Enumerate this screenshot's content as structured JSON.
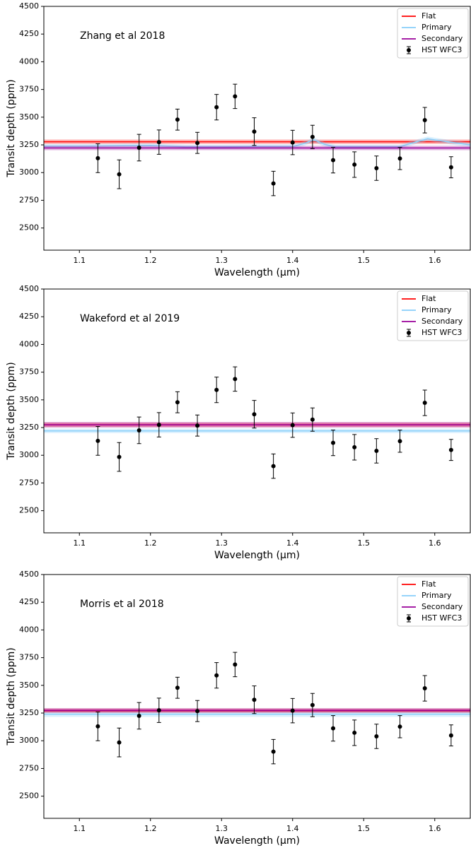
{
  "chart_data": [
    {
      "type": "scatter",
      "annotation": "Zhang et al 2018",
      "x_label": "Wavelength (μm)",
      "y_label": "Transit depth (ppm)",
      "xlim": [
        1.05,
        1.65
      ],
      "ylim": [
        2300,
        4500
      ],
      "xticks": [
        1.1,
        1.2,
        1.3,
        1.4,
        1.5,
        1.6
      ],
      "yticks": [
        2500,
        2750,
        3000,
        3250,
        3500,
        3750,
        4000,
        4250,
        4500
      ],
      "legend": "upper right",
      "series": [
        {
          "name": "Flat",
          "type": "line",
          "color": "#ff0000",
          "band": 20,
          "x": [
            1.05,
            1.65
          ],
          "values": [
            3278,
            3278
          ]
        },
        {
          "name": "Primary",
          "type": "line",
          "color": "#87cefa",
          "band": 20,
          "x": [
            1.05,
            1.1,
            1.2,
            1.25,
            1.3,
            1.35,
            1.4,
            1.415,
            1.43,
            1.445,
            1.46,
            1.5,
            1.55,
            1.57,
            1.59,
            1.61,
            1.65
          ],
          "values": [
            3238,
            3238,
            3245,
            3232,
            3232,
            3235,
            3235,
            3260,
            3295,
            3255,
            3232,
            3232,
            3232,
            3270,
            3305,
            3285,
            3250
          ]
        },
        {
          "name": "Secondary",
          "type": "line",
          "color": "#990099",
          "band": 20,
          "x": [
            1.05,
            1.65
          ],
          "values": [
            3222,
            3222
          ]
        },
        {
          "name": "HST WFC3",
          "type": "errorbar",
          "color": "#000000",
          "x": [
            1.126,
            1.156,
            1.184,
            1.212,
            1.238,
            1.266,
            1.293,
            1.319,
            1.346,
            1.373,
            1.4,
            1.428,
            1.457,
            1.487,
            1.518,
            1.551,
            1.586,
            1.623
          ],
          "values": [
            3130,
            2985,
            3225,
            3275,
            3478,
            3268,
            3590,
            3688,
            3370,
            2902,
            3272,
            3322,
            3112,
            3072,
            3040,
            3127,
            3473,
            3048
          ],
          "errors": [
            130,
            130,
            120,
            110,
            95,
            95,
            115,
            110,
            125,
            110,
            110,
            105,
            115,
            115,
            110,
            100,
            115,
            95
          ]
        }
      ]
    },
    {
      "type": "scatter",
      "annotation": "Wakeford et al 2019",
      "x_label": "Wavelength (μm)",
      "y_label": "Transit depth (ppm)",
      "xlim": [
        1.05,
        1.65
      ],
      "ylim": [
        2300,
        4500
      ],
      "xticks": [
        1.1,
        1.2,
        1.3,
        1.4,
        1.5,
        1.6
      ],
      "yticks": [
        2500,
        2750,
        3000,
        3250,
        3500,
        3750,
        4000,
        4250,
        4500
      ],
      "legend": "upper right",
      "series": [
        {
          "name": "Flat",
          "type": "line",
          "color": "#ff0000",
          "band": 20,
          "x": [
            1.05,
            1.65
          ],
          "values": [
            3275,
            3275
          ]
        },
        {
          "name": "Primary",
          "type": "line",
          "color": "#87cefa",
          "band": 20,
          "x": [
            1.05,
            1.65
          ],
          "values": [
            3220,
            3220
          ]
        },
        {
          "name": "Secondary",
          "type": "line",
          "color": "#990099",
          "band": 25,
          "x": [
            1.05,
            1.65
          ],
          "values": [
            3275,
            3275
          ]
        },
        {
          "name": "HST WFC3",
          "type": "errorbar",
          "color": "#000000",
          "x": [
            1.126,
            1.156,
            1.184,
            1.212,
            1.238,
            1.266,
            1.293,
            1.319,
            1.346,
            1.373,
            1.4,
            1.428,
            1.457,
            1.487,
            1.518,
            1.551,
            1.586,
            1.623
          ],
          "values": [
            3130,
            2985,
            3225,
            3275,
            3478,
            3268,
            3590,
            3688,
            3370,
            2902,
            3272,
            3322,
            3112,
            3072,
            3040,
            3127,
            3473,
            3048
          ],
          "errors": [
            130,
            130,
            120,
            110,
            95,
            95,
            115,
            110,
            125,
            110,
            110,
            105,
            115,
            115,
            110,
            100,
            115,
            95
          ]
        }
      ]
    },
    {
      "type": "scatter",
      "annotation": "Morris et al 2018",
      "x_label": "Wavelength (μm)",
      "y_label": "Transit depth (ppm)",
      "xlim": [
        1.05,
        1.65
      ],
      "ylim": [
        2300,
        4500
      ],
      "xticks": [
        1.1,
        1.2,
        1.3,
        1.4,
        1.5,
        1.6
      ],
      "yticks": [
        2500,
        2750,
        3000,
        3250,
        3500,
        3750,
        4000,
        4250,
        4500
      ],
      "legend": "upper right",
      "series": [
        {
          "name": "Flat",
          "type": "line",
          "color": "#ff0000",
          "band": 20,
          "x": [
            1.05,
            1.65
          ],
          "values": [
            3270,
            3270
          ]
        },
        {
          "name": "Primary",
          "type": "line",
          "color": "#87cefa",
          "band": 25,
          "x": [
            1.05,
            1.65
          ],
          "values": [
            3240,
            3240
          ]
        },
        {
          "name": "Secondary",
          "type": "line",
          "color": "#990099",
          "band": 20,
          "x": [
            1.05,
            1.65
          ],
          "values": [
            3275,
            3275
          ]
        },
        {
          "name": "HST WFC3",
          "type": "errorbar",
          "color": "#000000",
          "x": [
            1.126,
            1.156,
            1.184,
            1.212,
            1.238,
            1.266,
            1.293,
            1.319,
            1.346,
            1.373,
            1.4,
            1.428,
            1.457,
            1.487,
            1.518,
            1.551,
            1.586,
            1.623
          ],
          "values": [
            3130,
            2985,
            3225,
            3275,
            3478,
            3268,
            3590,
            3688,
            3370,
            2902,
            3272,
            3322,
            3112,
            3072,
            3040,
            3127,
            3473,
            3048
          ],
          "errors": [
            130,
            130,
            120,
            110,
            95,
            95,
            115,
            110,
            125,
            110,
            110,
            105,
            115,
            115,
            110,
            100,
            115,
            95
          ]
        }
      ]
    }
  ]
}
